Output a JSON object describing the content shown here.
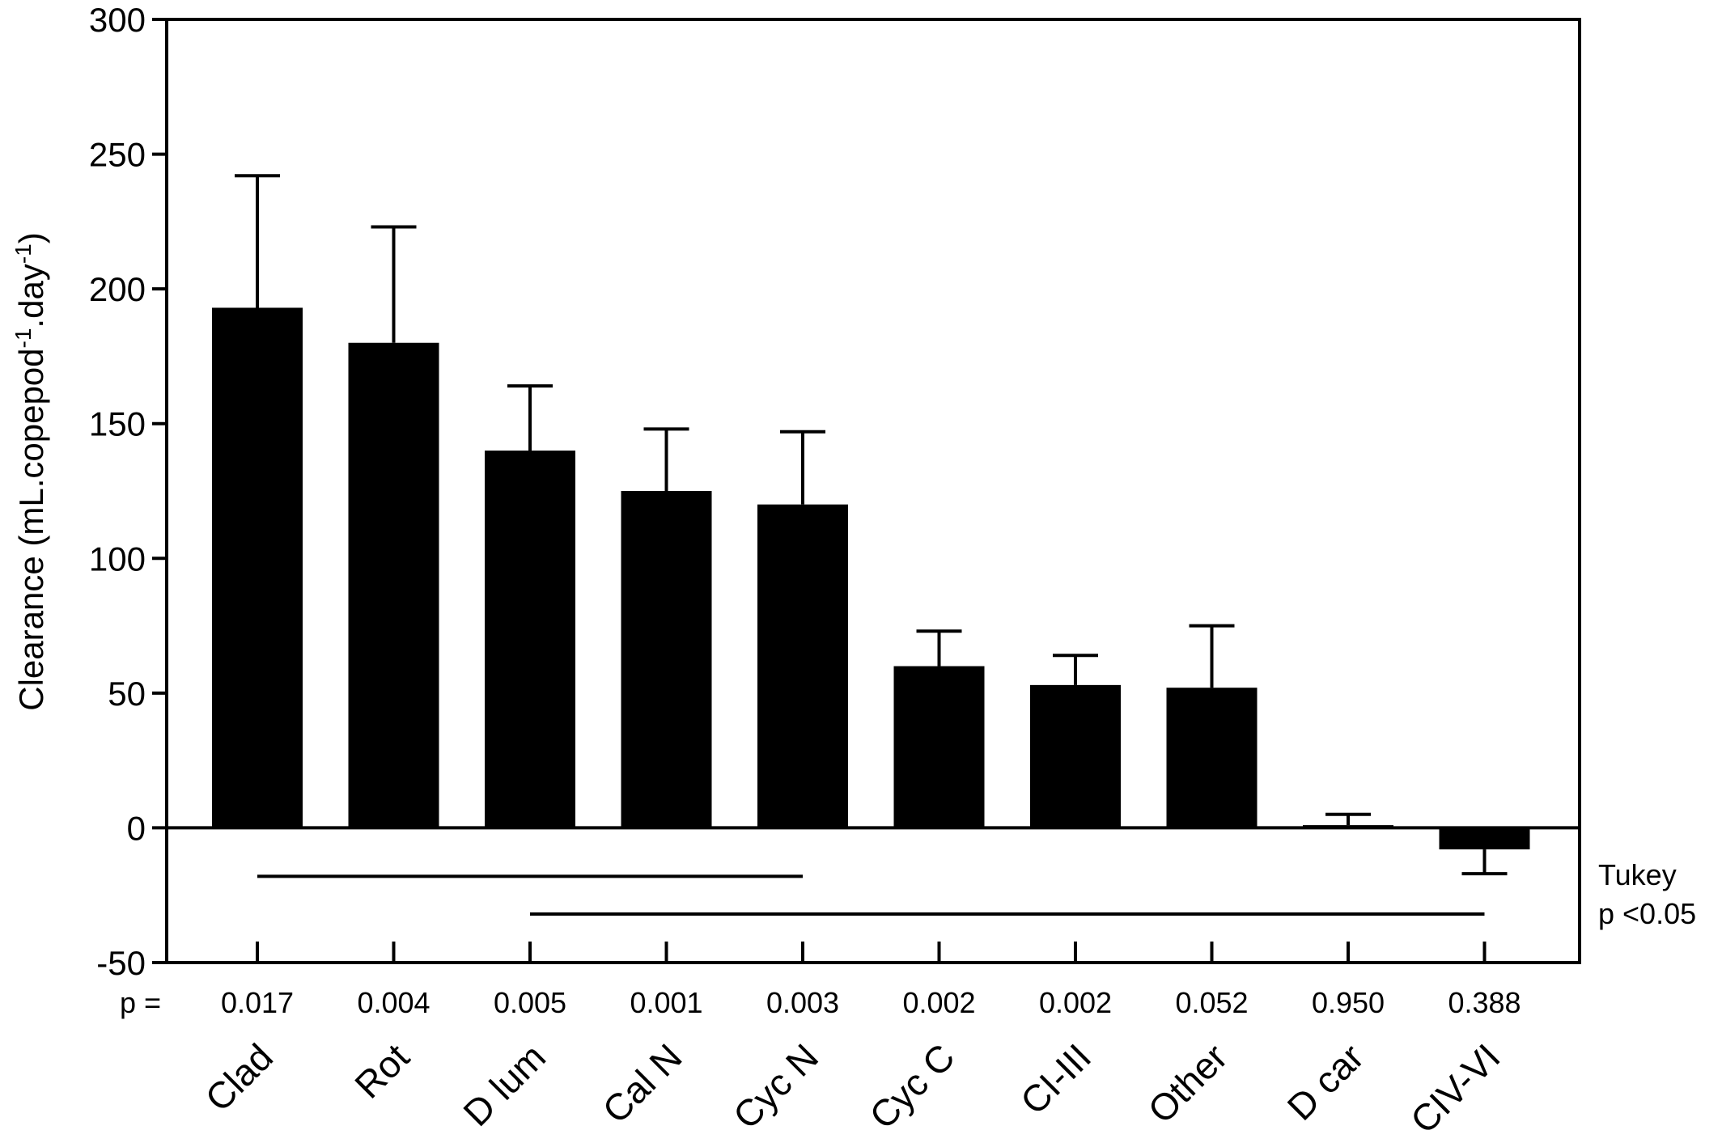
{
  "chart_data": {
    "type": "bar",
    "ylabel": "Clearance (mL.copepod",
    "ylabel_sup1": "-1",
    "ylabel_mid": ".day",
    "ylabel_sup2": "-1",
    "ylabel_end": ")",
    "ylim": [
      -50,
      300
    ],
    "yticks": [
      -50,
      0,
      50,
      100,
      150,
      200,
      250,
      300
    ],
    "categories": [
      "Clad",
      "Rot",
      "D lum",
      "Cal N",
      "Cyc N",
      "Cyc C",
      "CI-III",
      "Other",
      "D car",
      "CIV-VI"
    ],
    "values": [
      193,
      180,
      140,
      125,
      120,
      60,
      53,
      52,
      1,
      -8
    ],
    "errors": [
      49,
      43,
      24,
      23,
      27,
      13,
      11,
      23,
      4,
      9
    ],
    "p_prefix": "p =",
    "p_values": [
      "0.017",
      "0.004",
      "0.005",
      "0.001",
      "0.003",
      "0.002",
      "0.002",
      "0.052",
      "0.950",
      "0.388"
    ],
    "tukey_groups": [
      {
        "from": "Clad",
        "to": "Cyc N",
        "y": -18
      },
      {
        "from": "D lum",
        "to": "CIV-VI",
        "y": -32
      }
    ],
    "tukey_label_1": "Tukey",
    "tukey_label_2": "p <0.05",
    "bar_color": "#000000",
    "grid": false
  }
}
